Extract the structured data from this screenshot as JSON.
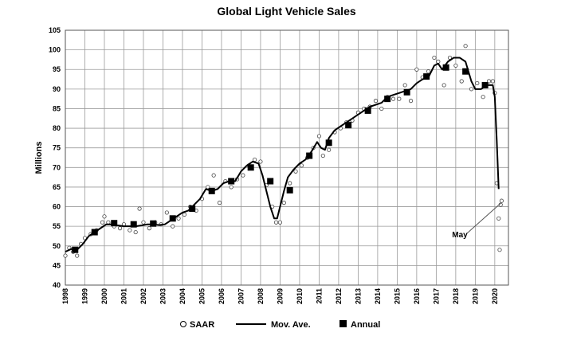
{
  "chart_data": {
    "type": "line",
    "title": "Global Light Vehicle Sales",
    "ylabel": "Millions",
    "xlabel": "",
    "ylim": [
      40,
      105
    ],
    "xlim": [
      1998,
      2020.7
    ],
    "grid": true,
    "y_ticks": [
      40,
      45,
      50,
      55,
      60,
      65,
      70,
      75,
      80,
      85,
      90,
      95,
      100,
      105
    ],
    "x_ticks": [
      "1998",
      "1999",
      "2000",
      "2001",
      "2002",
      "2003",
      "2004",
      "2005",
      "2006",
      "2007",
      "2008",
      "2009",
      "2010",
      "2011",
      "2012",
      "2013",
      "2014",
      "2015",
      "2016",
      "2017",
      "2018",
      "2019",
      "2020"
    ],
    "legend": {
      "placement": "bottom",
      "items": [
        {
          "label": "SAAR",
          "marker": "open-circle"
        },
        {
          "label": "Mov. Ave.",
          "marker": "line"
        },
        {
          "label": "Annual",
          "marker": "filled-square"
        }
      ]
    },
    "annotation": {
      "text": "May",
      "x": 2020.33,
      "y": 61
    },
    "series": [
      {
        "name": "Mov. Ave.",
        "type": "line",
        "x": [
          1998.0,
          1998.3,
          1998.6,
          1998.9,
          1999.2,
          1999.5,
          1999.8,
          2000.1,
          2000.4,
          2000.7,
          2001.0,
          2001.3,
          2001.6,
          2001.9,
          2002.2,
          2002.5,
          2002.8,
          2003.1,
          2003.4,
          2003.7,
          2004.0,
          2004.3,
          2004.6,
          2004.9,
          2005.2,
          2005.5,
          2005.8,
          2006.1,
          2006.4,
          2006.7,
          2007.0,
          2007.3,
          2007.6,
          2007.9,
          2008.1,
          2008.3,
          2008.5,
          2008.7,
          2008.85,
          2009.0,
          2009.2,
          2009.4,
          2009.7,
          2010.0,
          2010.3,
          2010.6,
          2010.9,
          2011.1,
          2011.3,
          2011.5,
          2011.8,
          2012.1,
          2012.4,
          2012.7,
          2013.0,
          2013.3,
          2013.6,
          2013.9,
          2014.2,
          2014.5,
          2014.8,
          2015.1,
          2015.4,
          2015.7,
          2016.0,
          2016.3,
          2016.6,
          2016.9,
          2017.1,
          2017.3,
          2017.6,
          2017.9,
          2018.2,
          2018.5,
          2018.8,
          2019.0,
          2019.3,
          2019.6,
          2019.9,
          2020.0,
          2020.1,
          2020.2
        ],
        "y": [
          48.5,
          49.2,
          49.0,
          50.5,
          52.5,
          53.5,
          54.5,
          55.5,
          55.5,
          55.2,
          55.0,
          55.0,
          55.0,
          55.2,
          55.5,
          55.5,
          55.3,
          55.5,
          56.5,
          57.5,
          58.5,
          59.0,
          60.5,
          62.0,
          64.5,
          64.0,
          64.5,
          66.0,
          66.5,
          66.5,
          69.0,
          70.5,
          71.5,
          71.0,
          68.0,
          64.0,
          60.0,
          57.0,
          57.0,
          60.0,
          64.0,
          67.5,
          69.5,
          71.0,
          72.0,
          74.0,
          76.5,
          75.0,
          74.5,
          77.5,
          79.5,
          80.5,
          81.5,
          82.5,
          83.5,
          84.5,
          85.5,
          86.0,
          86.5,
          88.0,
          88.5,
          89.0,
          89.5,
          90.0,
          91.5,
          92.5,
          93.0,
          96.0,
          96.5,
          95.0,
          97.0,
          98.0,
          98.0,
          97.0,
          92.0,
          90.0,
          90.0,
          91.0,
          91.0,
          88.0,
          77.0,
          64.5
        ]
      },
      {
        "name": "Annual",
        "type": "scatter",
        "x": [
          1998.5,
          1999.5,
          2000.5,
          2001.5,
          2002.5,
          2003.5,
          2004.5,
          2005.5,
          2006.5,
          2007.5,
          2008.5,
          2009.5,
          2010.5,
          2011.5,
          2012.5,
          2013.5,
          2014.5,
          2015.5,
          2016.5,
          2017.5,
          2018.5,
          2019.5
        ],
        "y": [
          49.0,
          53.5,
          55.8,
          55.5,
          55.7,
          57.0,
          59.5,
          64.0,
          66.5,
          70.0,
          66.5,
          64.2,
          73.0,
          76.3,
          80.8,
          84.5,
          87.5,
          89.2,
          93.2,
          95.5,
          94.5,
          91.0
        ]
      },
      {
        "name": "SAAR",
        "type": "scatter",
        "x": [
          1998.0,
          1998.2,
          1998.4,
          1998.6,
          1998.8,
          1999.0,
          1999.3,
          1999.6,
          1999.9,
          2000.0,
          2000.2,
          2000.5,
          2000.8,
          2001.0,
          2001.3,
          2001.6,
          2001.8,
          2002.0,
          2002.3,
          2002.6,
          2002.9,
          2003.2,
          2003.5,
          2003.8,
          2004.1,
          2004.4,
          2004.7,
          2005.0,
          2005.3,
          2005.6,
          2005.9,
          2006.2,
          2006.5,
          2006.8,
          2007.1,
          2007.4,
          2007.7,
          2008.0,
          2008.3,
          2008.6,
          2008.8,
          2009.0,
          2009.2,
          2009.5,
          2009.8,
          2010.1,
          2010.4,
          2010.7,
          2011.0,
          2011.2,
          2011.5,
          2011.8,
          2012.1,
          2012.4,
          2012.7,
          2013.0,
          2013.3,
          2013.6,
          2013.9,
          2014.2,
          2014.5,
          2014.8,
          2015.1,
          2015.4,
          2015.7,
          2016.0,
          2016.3,
          2016.6,
          2016.9,
          2017.1,
          2017.4,
          2017.7,
          2018.0,
          2018.3,
          2018.5,
          2018.8,
          2019.1,
          2019.4,
          2019.7,
          2019.9,
          2020.0,
          2020.1,
          2020.2,
          2020.25,
          2020.3,
          2020.35
        ],
        "y": [
          47.5,
          49.5,
          48.5,
          47.5,
          50.5,
          52.0,
          53.0,
          54.0,
          56.0,
          57.5,
          56.0,
          55.0,
          54.5,
          55.5,
          54.0,
          53.5,
          59.5,
          56.0,
          54.5,
          56.0,
          55.5,
          58.5,
          55.0,
          57.0,
          58.0,
          60.0,
          59.0,
          62.0,
          65.0,
          68.0,
          61.0,
          66.5,
          65.0,
          67.0,
          68.0,
          70.5,
          72.0,
          71.5,
          65.5,
          60.0,
          56.0,
          56.0,
          61.0,
          66.0,
          69.0,
          70.5,
          72.5,
          75.0,
          78.0,
          73.0,
          74.5,
          79.0,
          80.0,
          81.5,
          82.0,
          84.0,
          85.0,
          85.5,
          87.0,
          85.0,
          88.0,
          87.5,
          87.5,
          91.0,
          87.0,
          95.0,
          93.0,
          94.5,
          98.0,
          97.0,
          91.0,
          98.0,
          96.0,
          92.0,
          101.0,
          90.0,
          91.5,
          88.0,
          92.0,
          92.0,
          89.0,
          66.0,
          57.0,
          49.0,
          60.5,
          61.5
        ]
      }
    ]
  }
}
